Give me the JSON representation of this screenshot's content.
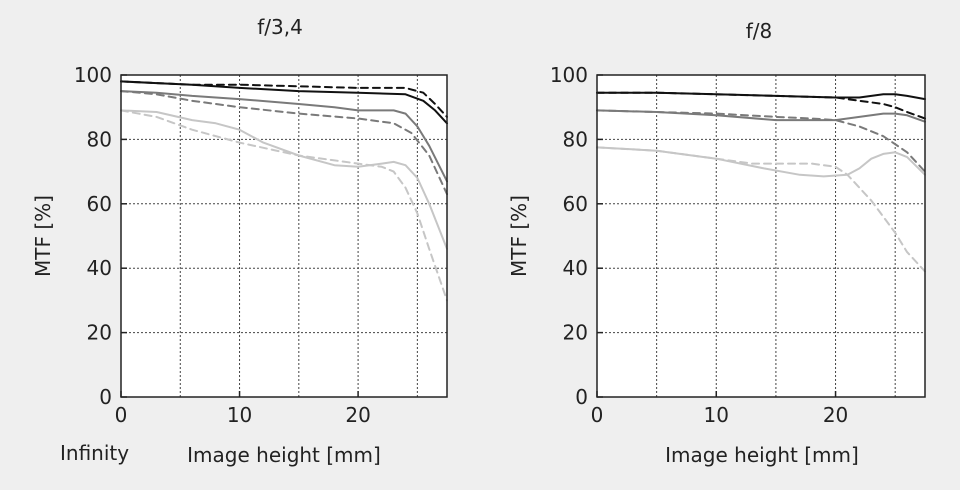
{
  "footer": {
    "condition": "Infinity"
  },
  "colors": {
    "background": "#efefef",
    "plot_background": "#ffffff",
    "grid": "#444444",
    "series_black": "#111111",
    "series_mid": "#7a7a7a",
    "series_light": "#c6c6c6"
  },
  "chart_data": [
    {
      "type": "line",
      "title": "f/3,4",
      "xlabel": "Image height [mm]",
      "ylabel": "MTF [%]",
      "xlim": [
        0,
        27.5
      ],
      "ylim": [
        0,
        100
      ],
      "xticks": [
        0,
        10,
        20
      ],
      "yticks": [
        0,
        20,
        40,
        60,
        80,
        100
      ],
      "grid": true,
      "series": [
        {
          "color": "#111111",
          "dash": false,
          "x": [
            0,
            3,
            6,
            10,
            15,
            20,
            24,
            25.5,
            26.5,
            27.5
          ],
          "y": [
            98,
            97.5,
            97,
            96,
            95,
            94.5,
            94,
            92,
            89,
            85
          ]
        },
        {
          "color": "#111111",
          "dash": true,
          "x": [
            0,
            3,
            6,
            10,
            15,
            20,
            24,
            25.5,
            26.5,
            27.5
          ],
          "y": [
            98,
            97.5,
            97,
            97,
            96.5,
            96,
            96,
            94.5,
            91,
            87
          ]
        },
        {
          "color": "#7a7a7a",
          "dash": false,
          "x": [
            0,
            3,
            6,
            10,
            15,
            18,
            20,
            23,
            24,
            25,
            26,
            27.5
          ],
          "y": [
            95,
            94.5,
            93.5,
            92.5,
            91,
            90,
            89,
            89,
            88,
            84,
            78,
            67
          ]
        },
        {
          "color": "#7a7a7a",
          "dash": true,
          "x": [
            0,
            3,
            6,
            10,
            15,
            20,
            23,
            24.5,
            26,
            27.5
          ],
          "y": [
            95,
            94,
            92,
            90,
            88,
            86.5,
            85,
            82,
            75,
            63
          ]
        },
        {
          "color": "#c6c6c6",
          "dash": false,
          "x": [
            0,
            3,
            6,
            8,
            10,
            12,
            15,
            18,
            20,
            22,
            23,
            24,
            25,
            26,
            27.5
          ],
          "y": [
            89,
            88.5,
            86,
            85,
            83,
            79,
            75,
            72,
            71.5,
            72.5,
            73,
            72,
            68,
            60,
            46
          ]
        },
        {
          "color": "#c6c6c6",
          "dash": true,
          "x": [
            0,
            3,
            6,
            10,
            15,
            20,
            22,
            23,
            24,
            25,
            26,
            27.5
          ],
          "y": [
            89,
            87,
            83,
            79,
            75,
            72.5,
            71.5,
            70,
            65,
            57,
            46,
            30
          ]
        }
      ]
    },
    {
      "type": "line",
      "title": "f/8",
      "xlabel": "Image height [mm]",
      "ylabel": "MTF [%]",
      "xlim": [
        0,
        27.5
      ],
      "ylim": [
        0,
        100
      ],
      "xticks": [
        0,
        10,
        20
      ],
      "yticks": [
        0,
        20,
        40,
        60,
        80,
        100
      ],
      "grid": true,
      "series": [
        {
          "color": "#111111",
          "dash": false,
          "x": [
            0,
            5,
            10,
            15,
            20,
            22,
            24,
            25,
            26,
            27.5
          ],
          "y": [
            94.5,
            94.5,
            94,
            93.5,
            93,
            93,
            94,
            94,
            93.5,
            92.5
          ]
        },
        {
          "color": "#111111",
          "dash": true,
          "x": [
            0,
            5,
            10,
            15,
            20,
            22,
            24,
            25,
            26,
            27.5
          ],
          "y": [
            94.5,
            94.5,
            94,
            93.5,
            93,
            92,
            91,
            90,
            88.5,
            86.5
          ]
        },
        {
          "color": "#7a7a7a",
          "dash": false,
          "x": [
            0,
            5,
            10,
            15,
            20,
            22,
            24,
            25,
            26,
            27.5
          ],
          "y": [
            89,
            88.5,
            87.5,
            86,
            86,
            87,
            88,
            88,
            87.5,
            85.5
          ]
        },
        {
          "color": "#7a7a7a",
          "dash": true,
          "x": [
            0,
            5,
            10,
            15,
            18,
            20,
            22,
            24,
            26,
            27.5
          ],
          "y": [
            89,
            88.5,
            88,
            87,
            86.5,
            86,
            84,
            81,
            76,
            70
          ]
        },
        {
          "color": "#c6c6c6",
          "dash": false,
          "x": [
            0,
            5,
            10,
            14,
            17,
            19,
            21,
            22,
            23,
            24,
            25,
            26,
            27.5
          ],
          "y": [
            77.5,
            76.5,
            74,
            71,
            69,
            68.5,
            69,
            71,
            74,
            75.5,
            76,
            74.5,
            69
          ]
        },
        {
          "color": "#c6c6c6",
          "dash": true,
          "x": [
            0,
            5,
            10,
            13,
            15,
            18,
            20,
            21,
            22,
            23,
            24,
            25,
            26,
            27.5
          ],
          "y": [
            77.5,
            76.5,
            74,
            72.5,
            72.5,
            72.5,
            71.5,
            69,
            65,
            61,
            56,
            51,
            45,
            39
          ]
        }
      ]
    }
  ]
}
